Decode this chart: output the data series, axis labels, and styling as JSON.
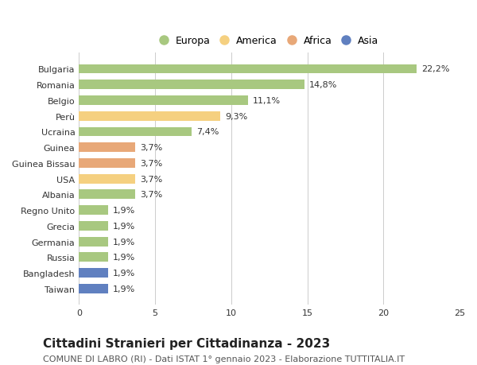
{
  "countries": [
    "Bulgaria",
    "Romania",
    "Belgio",
    "Perù",
    "Ucraina",
    "Guinea",
    "Guinea Bissau",
    "USA",
    "Albania",
    "Regno Unito",
    "Grecia",
    "Germania",
    "Russia",
    "Bangladesh",
    "Taiwan"
  ],
  "values": [
    22.2,
    14.8,
    11.1,
    9.3,
    7.4,
    3.7,
    3.7,
    3.7,
    3.7,
    1.9,
    1.9,
    1.9,
    1.9,
    1.9,
    1.9
  ],
  "labels": [
    "22,2%",
    "14,8%",
    "11,1%",
    "9,3%",
    "7,4%",
    "3,7%",
    "3,7%",
    "3,7%",
    "3,7%",
    "1,9%",
    "1,9%",
    "1,9%",
    "1,9%",
    "1,9%",
    "1,9%"
  ],
  "continents": [
    "Europa",
    "Europa",
    "Europa",
    "America",
    "Europa",
    "Africa",
    "Africa",
    "America",
    "Europa",
    "Europa",
    "Europa",
    "Europa",
    "Europa",
    "Asia",
    "Asia"
  ],
  "colors": {
    "Europa": "#a8c880",
    "America": "#f5d080",
    "Africa": "#e8a878",
    "Asia": "#6080c0"
  },
  "legend_order": [
    "Europa",
    "America",
    "Africa",
    "Asia"
  ],
  "title": "Cittadini Stranieri per Cittadinanza - 2023",
  "subtitle": "COMUNE DI LABRO (RI) - Dati ISTAT 1° gennaio 2023 - Elaborazione TUTTITALIA.IT",
  "xlim": [
    0,
    25
  ],
  "xticks": [
    0,
    5,
    10,
    15,
    20,
    25
  ],
  "background_color": "#ffffff",
  "bar_height": 0.6,
  "title_fontsize": 11,
  "subtitle_fontsize": 8,
  "label_fontsize": 8,
  "tick_fontsize": 8,
  "legend_fontsize": 9
}
